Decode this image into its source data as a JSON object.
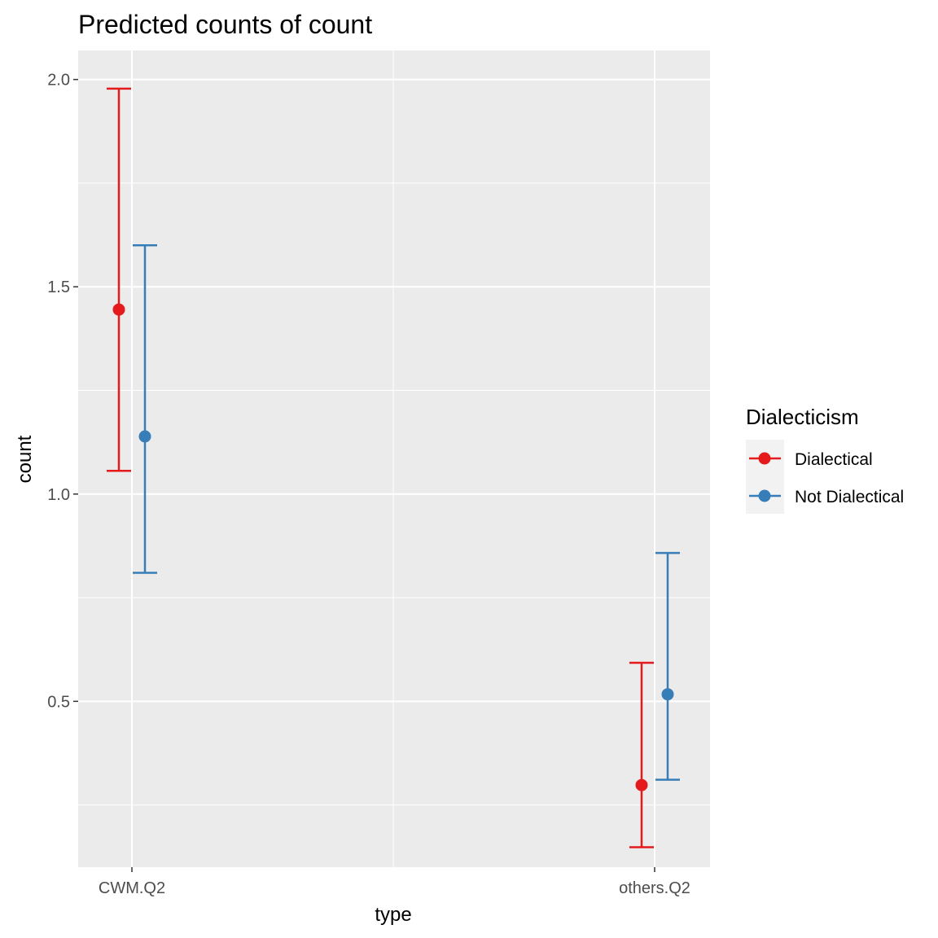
{
  "chart_data": {
    "type": "scatter",
    "title": "Predicted counts of count",
    "xlabel": "type",
    "ylabel": "count",
    "categories": [
      "CWM.Q2",
      "others.Q2"
    ],
    "ylim": [
      0.1,
      2.07
    ],
    "y_ticks": [
      0.5,
      1.0,
      1.5,
      2.0
    ],
    "y_tick_labels": [
      "0.5",
      "1.0",
      "1.5",
      "2.0"
    ],
    "grid": true,
    "legend": {
      "title": "Dialecticism",
      "position": "right"
    },
    "series": [
      {
        "name": "Dialectical",
        "color": "#e41a1c",
        "points": [
          {
            "category": "CWM.Q2",
            "value": 1.445,
            "lower": 1.056,
            "upper": 1.978
          },
          {
            "category": "others.Q2",
            "value": 0.298,
            "lower": 0.148,
            "upper": 0.593
          }
        ]
      },
      {
        "name": "Not Dialectical",
        "color": "#377eb8",
        "points": [
          {
            "category": "CWM.Q2",
            "value": 1.139,
            "lower": 0.81,
            "upper": 1.6
          },
          {
            "category": "others.Q2",
            "value": 0.517,
            "lower": 0.311,
            "upper": 0.858
          }
        ]
      }
    ]
  }
}
